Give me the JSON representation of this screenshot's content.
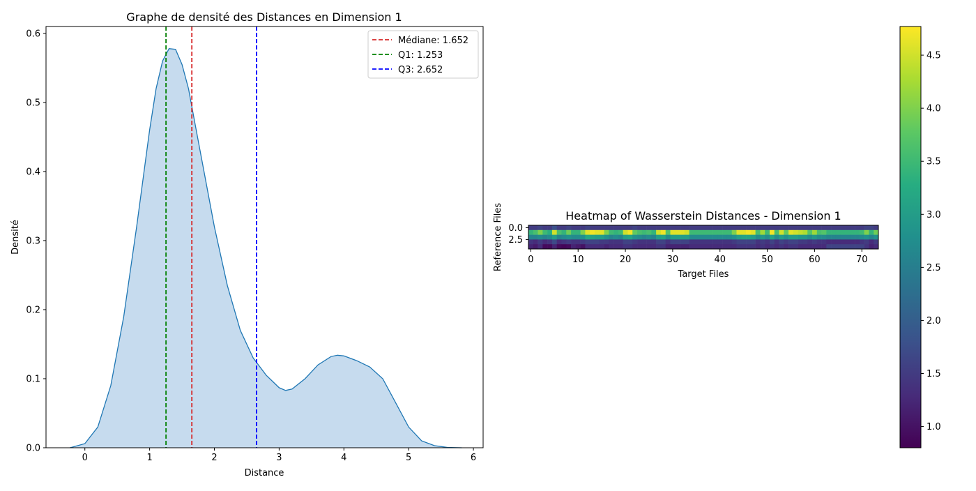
{
  "chart_data": [
    {
      "type": "area",
      "title": "Graphe de densité des Distances en Dimension 1",
      "xlabel": "Distance",
      "ylabel": "Densité",
      "xlim": [
        -0.6,
        6.15
      ],
      "ylim": [
        0,
        0.61
      ],
      "x_ticks": [
        0,
        1,
        2,
        3,
        4,
        5,
        6
      ],
      "y_ticks": [
        0.0,
        0.1,
        0.2,
        0.3,
        0.4,
        0.5,
        0.6
      ],
      "series": [
        {
          "x": [
            -0.23,
            0.0,
            0.2,
            0.4,
            0.6,
            0.8,
            1.0,
            1.1,
            1.2,
            1.3,
            1.4,
            1.5,
            1.6,
            1.7,
            1.8,
            2.0,
            2.2,
            2.4,
            2.6,
            2.8,
            3.0,
            3.1,
            3.2,
            3.4,
            3.6,
            3.8,
            3.9,
            4.0,
            4.2,
            4.4,
            4.6,
            4.8,
            5.0,
            5.2,
            5.4,
            5.6,
            5.82
          ],
          "y": [
            0.0,
            0.006,
            0.03,
            0.09,
            0.19,
            0.32,
            0.46,
            0.52,
            0.56,
            0.578,
            0.577,
            0.555,
            0.52,
            0.47,
            0.42,
            0.32,
            0.235,
            0.17,
            0.13,
            0.105,
            0.087,
            0.083,
            0.085,
            0.1,
            0.12,
            0.132,
            0.134,
            0.133,
            0.126,
            0.117,
            0.1,
            0.065,
            0.03,
            0.01,
            0.003,
            0.0005,
            0.0
          ]
        }
      ],
      "vlines": [
        {
          "label": "Médiane: 1.652",
          "x": 1.652,
          "color": "#d62728"
        },
        {
          "label": "Q1: 1.253",
          "x": 1.253,
          "color": "#008000"
        },
        {
          "label": "Q3: 2.652",
          "x": 2.652,
          "color": "#0000ff"
        }
      ],
      "legend_position": "top-right",
      "fill_color": "#c6dbee",
      "line_color": "#1f77b4",
      "grid": false
    },
    {
      "type": "heatmap",
      "title": "Heatmap of Wasserstein Distances - Dimension 1",
      "xlabel": "Target Files",
      "ylabel": "Reference Files",
      "x_ticks": [
        0,
        10,
        20,
        30,
        40,
        50,
        60,
        70
      ],
      "y_ticks": [
        "0.0",
        "2.5"
      ],
      "colormap": "viridis",
      "vmin": 0.8,
      "vmax": 4.77,
      "colorbar_ticks": [
        1.0,
        1.5,
        2.0,
        2.5,
        3.0,
        3.5,
        4.0,
        4.5
      ],
      "values": [
        [
          1.5,
          1.5,
          1.6,
          1.5,
          1.5,
          1.8,
          1.5,
          1.5,
          1.6,
          1.5,
          1.5,
          1.5,
          1.6,
          1.5,
          1.5,
          1.5,
          1.5,
          1.5,
          1.5,
          1.5,
          1.5,
          1.5,
          1.6,
          1.5,
          1.5,
          1.5,
          1.5,
          1.5,
          1.5,
          1.5,
          1.5,
          1.5,
          1.5,
          1.5,
          1.5,
          1.5,
          1.5,
          1.5,
          1.5,
          1.5,
          1.5,
          1.5,
          1.5,
          1.5,
          1.5,
          1.5,
          1.5,
          1.5,
          1.5,
          1.5,
          1.5,
          1.5,
          1.5,
          1.5,
          1.5,
          1.5,
          1.5,
          1.5,
          1.5,
          1.5,
          1.5,
          1.5,
          1.5,
          1.5,
          1.5,
          1.5,
          1.5,
          1.5,
          1.5,
          1.5,
          1.5,
          1.6,
          1.6,
          1.5
        ],
        [
          3.4,
          3.6,
          4.0,
          3.5,
          3.3,
          4.5,
          3.6,
          3.4,
          3.9,
          3.4,
          3.4,
          4.0,
          4.6,
          4.7,
          4.6,
          4.6,
          4.0,
          3.5,
          3.4,
          3.5,
          4.5,
          4.7,
          3.8,
          3.6,
          3.5,
          3.6,
          3.4,
          4.5,
          4.7,
          3.7,
          4.6,
          4.6,
          4.6,
          4.5,
          3.5,
          3.5,
          3.5,
          3.5,
          3.5,
          3.5,
          3.5,
          3.5,
          3.5,
          4.0,
          4.6,
          4.6,
          4.7,
          4.6,
          3.6,
          4.2,
          3.5,
          4.7,
          3.6,
          4.5,
          3.8,
          4.6,
          4.5,
          4.4,
          4.3,
          3.7,
          4.2,
          3.6,
          3.7,
          3.4,
          3.4,
          3.4,
          3.4,
          3.4,
          3.4,
          3.4,
          3.5,
          4.0,
          3.4,
          3.9
        ],
        [
          2.6,
          2.6,
          2.7,
          2.6,
          2.7,
          3.0,
          2.6,
          2.7,
          2.8,
          2.7,
          2.7,
          2.8,
          3.2,
          3.1,
          3.0,
          3.0,
          2.8,
          2.6,
          2.7,
          2.6,
          3.0,
          3.1,
          2.8,
          2.7,
          2.6,
          2.7,
          2.6,
          3.0,
          3.1,
          2.7,
          3.0,
          3.0,
          3.0,
          3.0,
          2.7,
          2.7,
          2.7,
          2.7,
          2.7,
          2.7,
          2.7,
          2.7,
          2.7,
          2.8,
          3.0,
          3.1,
          3.1,
          3.0,
          2.7,
          2.9,
          2.7,
          3.1,
          2.7,
          3.0,
          2.8,
          3.0,
          3.0,
          2.9,
          2.9,
          2.7,
          2.9,
          2.7,
          2.7,
          2.6,
          2.6,
          2.6,
          2.6,
          2.6,
          2.6,
          2.6,
          2.7,
          2.8,
          2.6,
          2.8
        ],
        [
          1.4,
          1.3,
          1.5,
          1.3,
          1.4,
          1.7,
          1.3,
          1.4,
          1.5,
          1.4,
          1.4,
          1.5,
          1.6,
          1.6,
          1.6,
          1.5,
          1.5,
          1.4,
          1.4,
          1.4,
          1.6,
          1.6,
          1.5,
          1.4,
          1.4,
          1.4,
          1.4,
          1.6,
          1.6,
          1.4,
          1.6,
          1.6,
          1.6,
          1.6,
          1.4,
          1.4,
          1.4,
          1.4,
          1.4,
          1.4,
          1.4,
          1.4,
          1.4,
          1.5,
          1.6,
          1.6,
          1.6,
          1.6,
          1.4,
          1.5,
          1.4,
          1.6,
          1.4,
          1.6,
          1.5,
          1.6,
          1.6,
          1.5,
          1.5,
          1.4,
          1.5,
          1.4,
          1.4,
          1.3,
          1.3,
          1.3,
          1.3,
          1.3,
          1.3,
          1.3,
          1.4,
          1.5,
          1.3,
          1.5
        ],
        [
          1.2,
          1.1,
          1.3,
          0.9,
          0.9,
          1.2,
          0.9,
          0.85,
          0.9,
          1.2,
          1.1,
          1.0,
          1.3,
          1.3,
          1.3,
          1.3,
          1.2,
          1.3,
          1.3,
          1.3,
          1.4,
          1.4,
          1.3,
          1.3,
          1.3,
          1.3,
          1.3,
          1.4,
          1.4,
          1.2,
          1.2,
          1.2,
          1.2,
          1.2,
          1.3,
          1.3,
          1.3,
          1.3,
          1.3,
          1.3,
          1.3,
          1.3,
          1.3,
          1.3,
          1.4,
          1.4,
          1.4,
          1.4,
          1.3,
          1.4,
          1.3,
          1.4,
          1.3,
          1.4,
          1.3,
          1.4,
          1.4,
          1.3,
          1.3,
          1.3,
          1.3,
          1.3,
          1.3,
          1.6,
          1.6,
          1.6,
          1.6,
          1.6,
          1.6,
          1.6,
          1.6,
          1.4,
          1.2,
          1.3
        ]
      ]
    }
  ]
}
